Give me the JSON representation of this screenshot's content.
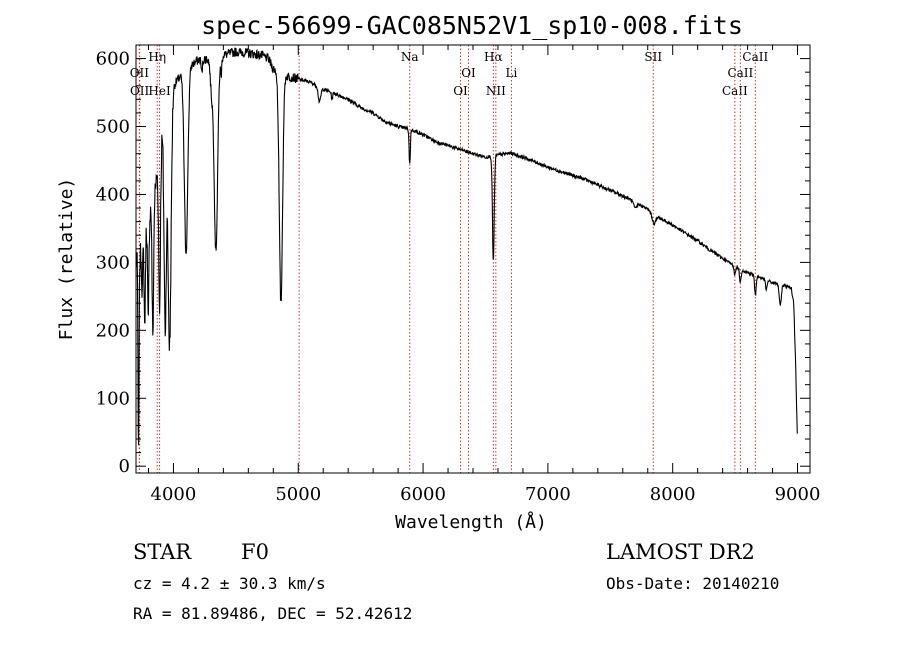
{
  "chart_data": {
    "type": "line",
    "title": "spec-56699-GAC085N52V1_sp10-008.fits",
    "xlabel": "Wavelength (Å)",
    "ylabel": "Flux (relative)",
    "xlim": [
      3700,
      9100
    ],
    "ylim": [
      -10,
      620
    ],
    "x_ticks": [
      4000,
      5000,
      6000,
      7000,
      8000,
      9000
    ],
    "y_ticks": [
      0,
      100,
      200,
      300,
      400,
      500,
      600
    ],
    "grid": false,
    "line_color": "#000000",
    "marker_color": "#cc3333",
    "continuum": [
      [
        3700,
        300
      ],
      [
        3740,
        310
      ],
      [
        3790,
        360
      ],
      [
        3850,
        400
      ],
      [
        3900,
        480
      ],
      [
        3950,
        520
      ],
      [
        4000,
        560
      ],
      [
        4100,
        585
      ],
      [
        4200,
        598
      ],
      [
        4300,
        600
      ],
      [
        4400,
        605
      ],
      [
        4500,
        610
      ],
      [
        4600,
        608
      ],
      [
        4700,
        605
      ],
      [
        4760,
        600
      ],
      [
        4800,
        585
      ],
      [
        4900,
        575
      ],
      [
        5000,
        570
      ],
      [
        5100,
        565
      ],
      [
        5200,
        555
      ],
      [
        5300,
        548
      ],
      [
        5400,
        540
      ],
      [
        5500,
        528
      ],
      [
        5600,
        520
      ],
      [
        5700,
        507
      ],
      [
        5800,
        500
      ],
      [
        5900,
        496
      ],
      [
        6000,
        488
      ],
      [
        6100,
        478
      ],
      [
        6200,
        472
      ],
      [
        6300,
        466
      ],
      [
        6400,
        460
      ],
      [
        6500,
        455
      ],
      [
        6600,
        458
      ],
      [
        6700,
        461
      ],
      [
        6800,
        455
      ],
      [
        6900,
        448
      ],
      [
        7000,
        440
      ],
      [
        7100,
        434
      ],
      [
        7200,
        428
      ],
      [
        7300,
        422
      ],
      [
        7400,
        414
      ],
      [
        7500,
        406
      ],
      [
        7600,
        398
      ],
      [
        7700,
        389
      ],
      [
        7800,
        378
      ],
      [
        7900,
        365
      ],
      [
        8000,
        355
      ],
      [
        8100,
        343
      ],
      [
        8200,
        332
      ],
      [
        8300,
        318
      ],
      [
        8400,
        306
      ],
      [
        8500,
        294
      ],
      [
        8600,
        285
      ],
      [
        8700,
        278
      ],
      [
        8800,
        270
      ],
      [
        8900,
        266
      ],
      [
        8950,
        262
      ],
      [
        8970,
        240
      ],
      [
        8985,
        150
      ],
      [
        9000,
        30
      ]
    ],
    "absorption_features": [
      {
        "center": 3720,
        "depth": 300,
        "width": 4
      },
      {
        "center": 3750,
        "depth": 60,
        "width": 4
      },
      {
        "center": 3770,
        "depth": 130,
        "width": 5
      },
      {
        "center": 3798,
        "depth": 160,
        "width": 5
      },
      {
        "center": 3835,
        "depth": 200,
        "width": 6
      },
      {
        "center": 3889,
        "depth": 230,
        "width": 7
      },
      {
        "center": 3934,
        "depth": 300,
        "width": 9
      },
      {
        "center": 3969,
        "depth": 360,
        "width": 12
      },
      {
        "center": 4101,
        "depth": 270,
        "width": 14
      },
      {
        "center": 4227,
        "depth": 20,
        "width": 5
      },
      {
        "center": 4305,
        "depth": 45,
        "width": 10
      },
      {
        "center": 4340,
        "depth": 285,
        "width": 14
      },
      {
        "center": 4383,
        "depth": 25,
        "width": 5
      },
      {
        "center": 4861,
        "depth": 340,
        "width": 13
      },
      {
        "center": 5170,
        "depth": 22,
        "width": 10
      },
      {
        "center": 5270,
        "depth": 10,
        "width": 5
      },
      {
        "center": 5893,
        "depth": 52,
        "width": 5
      },
      {
        "center": 6563,
        "depth": 155,
        "width": 7
      },
      {
        "center": 7700,
        "depth": 10,
        "width": 12
      },
      {
        "center": 7850,
        "depth": 14,
        "width": 15
      },
      {
        "center": 8498,
        "depth": 12,
        "width": 6
      },
      {
        "center": 8542,
        "depth": 20,
        "width": 6
      },
      {
        "center": 8662,
        "depth": 30,
        "width": 6
      },
      {
        "center": 8750,
        "depth": 15,
        "width": 6
      },
      {
        "center": 8862,
        "depth": 32,
        "width": 8
      }
    ],
    "line_markers": [
      {
        "wavelength": 3727,
        "label": "OII",
        "row": 2
      },
      {
        "wavelength": 3729,
        "label": "OII",
        "row": 3
      },
      {
        "wavelength": 3889,
        "label": "HeI",
        "row": 3
      },
      {
        "wavelength": 3870,
        "label": "Hη",
        "row": 1
      },
      {
        "wavelength": 5007,
        "label": "",
        "row": 0
      },
      {
        "wavelength": 5893,
        "label": "Na",
        "row": 1
      },
      {
        "wavelength": 6300,
        "label": "OI",
        "row": 3
      },
      {
        "wavelength": 6364,
        "label": "OI",
        "row": 2
      },
      {
        "wavelength": 6563,
        "label": "Hα",
        "row": 1
      },
      {
        "wavelength": 6583,
        "label": "NII",
        "row": 3
      },
      {
        "wavelength": 6708,
        "label": "Li",
        "row": 2
      },
      {
        "wavelength": 7844,
        "label": "SII",
        "row": 1
      },
      {
        "wavelength": 8498,
        "label": "CaII",
        "row": 3
      },
      {
        "wavelength": 8542,
        "label": "CaII",
        "row": 2
      },
      {
        "wavelength": 8662,
        "label": "CaII",
        "row": 1
      }
    ]
  },
  "info": {
    "object_class": "STAR",
    "subclass": "F0",
    "redshift": "cz = 4.2 ± 30.3 km/s",
    "coords": "RA =  81.89486, DEC =  52.42612",
    "survey": "LAMOST DR2",
    "obs_date": "Obs-Date: 20140210"
  }
}
